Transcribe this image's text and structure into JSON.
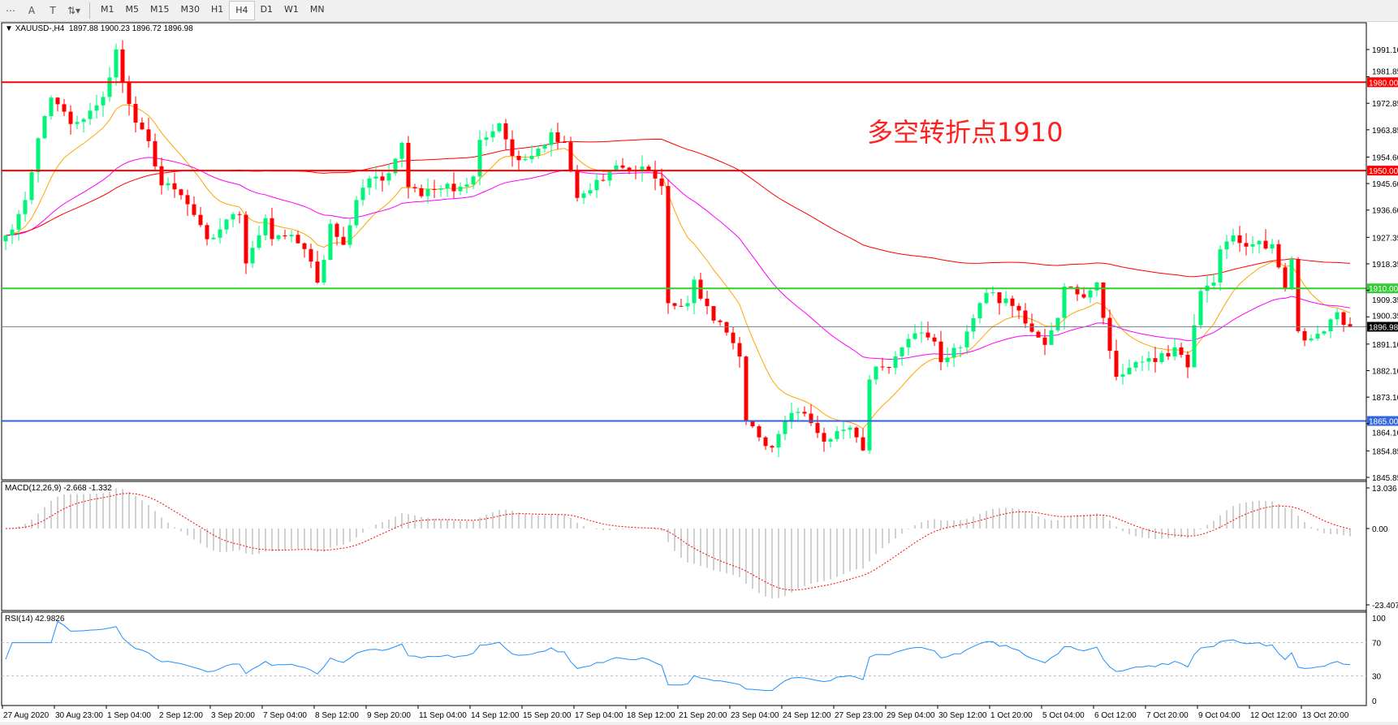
{
  "toolbar": {
    "icons": [
      "crosshair-icon",
      "text-A-icon",
      "text-T-icon",
      "arrows-icon"
    ],
    "timeframes": [
      "M1",
      "M5",
      "M15",
      "M30",
      "H1",
      "H4",
      "D1",
      "W1",
      "MN"
    ],
    "active_timeframe": "H4"
  },
  "header": {
    "symbol": "XAUUSD-,H4",
    "ohlc": "1897.88 1900.23 1896.72 1896.98"
  },
  "annotation": "多空转折点1910",
  "price_axis": [
    "1991.10",
    "1981.85",
    "1972.85",
    "1963.85",
    "1954.60",
    "1945.60",
    "1936.60",
    "1927.35",
    "1918.35",
    "1909.35",
    "1900.35",
    "1891.10",
    "1882.10",
    "1873.10",
    "1864.10",
    "1854.85",
    "1845.85"
  ],
  "levels": [
    {
      "price": 1980.0,
      "label": "1980.00",
      "color": "#ff0000"
    },
    {
      "price": 1950.0,
      "label": "1950.00",
      "color": "#ff0000"
    },
    {
      "price": 1910.0,
      "label": "1910.00",
      "color": "#33cc33"
    },
    {
      "price": 1865.0,
      "label": "1865.00",
      "color": "#3366dd"
    },
    {
      "price": 1896.98,
      "label": "1896.98",
      "color": "#000000",
      "line": "#778899"
    }
  ],
  "macd": {
    "label": "MACD(12,26,9) -2.668 -1.332",
    "axis": [
      "13.036",
      "0.00",
      "-23.407"
    ]
  },
  "rsi": {
    "label": "RSI(14) 42.9826",
    "axis": [
      "100",
      "70",
      "30",
      "0"
    ]
  },
  "time_axis": [
    "27 Aug 2020",
    "30 Aug 23:00",
    "1 Sep 04:00",
    "2 Sep 12:00",
    "3 Sep 20:00",
    "7 Sep 04:00",
    "8 Sep 12:00",
    "9 Sep 20:00",
    "11 Sep 04:00",
    "14 Sep 12:00",
    "15 Sep 20:00",
    "17 Sep 04:00",
    "18 Sep 12:00",
    "21 Sep 20:00",
    "23 Sep 04:00",
    "24 Sep 12:00",
    "27 Sep 23:00",
    "29 Sep 04:00",
    "30 Sep 12:00",
    "1 Oct 20:00",
    "5 Oct 04:00",
    "6 Oct 12:00",
    "7 Oct 20:00",
    "9 Oct 04:00",
    "12 Oct 12:00",
    "13 Oct 20:00"
  ],
  "colors": {
    "bull": "#00f57a",
    "bear": "#ff0000",
    "ma_fast": "#ffa500",
    "ma_mid": "#ff00ff",
    "ma_slow": "#ff0000",
    "rsi": "#1e90ff",
    "macd_hist": "#c0c0c0",
    "macd_signal": "#ff0000"
  },
  "chart_data": {
    "type": "candlestick",
    "symbol": "XAUUSD",
    "timeframe": "H4",
    "ylim": [
      1845.85,
      1996
    ],
    "last_bar": {
      "open": 1897.88,
      "high": 1900.23,
      "low": 1896.72,
      "close": 1896.98
    },
    "close_path": [
      [
        0,
        1928
      ],
      [
        1,
        1930
      ],
      [
        3,
        1940
      ],
      [
        5,
        1962
      ],
      [
        7,
        1975
      ],
      [
        11,
        1965
      ],
      [
        15,
        1975
      ],
      [
        17,
        1990
      ],
      [
        18,
        1980
      ],
      [
        19,
        1972
      ],
      [
        22,
        1960
      ],
      [
        24,
        1945
      ],
      [
        26,
        1945
      ],
      [
        29,
        1935
      ],
      [
        31,
        1928
      ],
      [
        33,
        1930
      ],
      [
        36,
        1935
      ],
      [
        37,
        1920
      ],
      [
        40,
        1932
      ],
      [
        41,
        1928
      ],
      [
        44,
        1928
      ],
      [
        47,
        1920
      ],
      [
        48,
        1912
      ],
      [
        50,
        1930
      ],
      [
        52,
        1925
      ],
      [
        54,
        1940
      ],
      [
        56,
        1948
      ],
      [
        59,
        1948
      ],
      [
        61,
        1960
      ],
      [
        62,
        1945
      ],
      [
        65,
        1942
      ],
      [
        67,
        1945
      ],
      [
        69,
        1943
      ],
      [
        72,
        1948
      ],
      [
        73,
        1960
      ],
      [
        76,
        1965
      ],
      [
        78,
        1955
      ],
      [
        81,
        1955
      ],
      [
        84,
        1963
      ],
      [
        86,
        1960
      ],
      [
        88,
        1940
      ],
      [
        91,
        1945
      ],
      [
        94,
        1952
      ],
      [
        96,
        1950
      ],
      [
        99,
        1950
      ],
      [
        101,
        1945
      ],
      [
        102,
        1905
      ],
      [
        105,
        1905
      ],
      [
        106,
        1912
      ],
      [
        109,
        1900
      ],
      [
        111,
        1895
      ],
      [
        113,
        1885
      ],
      [
        114,
        1865
      ],
      [
        116,
        1858
      ],
      [
        118,
        1855
      ],
      [
        120,
        1865
      ],
      [
        122,
        1870
      ],
      [
        124,
        1865
      ],
      [
        126,
        1858
      ],
      [
        128,
        1862
      ],
      [
        130,
        1862
      ],
      [
        132,
        1855
      ],
      [
        133,
        1880
      ],
      [
        136,
        1885
      ],
      [
        138,
        1890
      ],
      [
        140,
        1895
      ],
      [
        142,
        1895
      ],
      [
        144,
        1885
      ],
      [
        147,
        1890
      ],
      [
        149,
        1900
      ],
      [
        151,
        1910
      ],
      [
        153,
        1905
      ],
      [
        155,
        1905
      ],
      [
        157,
        1900
      ],
      [
        160,
        1890
      ],
      [
        162,
        1900
      ],
      [
        163,
        1910
      ],
      [
        165,
        1908
      ],
      [
        167,
        1908
      ],
      [
        168,
        1912
      ],
      [
        171,
        1880
      ],
      [
        173,
        1885
      ],
      [
        175,
        1885
      ],
      [
        177,
        1885
      ],
      [
        180,
        1890
      ],
      [
        182,
        1885
      ],
      [
        184,
        1910
      ],
      [
        186,
        1912
      ],
      [
        187,
        1925
      ],
      [
        189,
        1928
      ],
      [
        191,
        1925
      ],
      [
        194,
        1925
      ],
      [
        195,
        1925
      ],
      [
        197,
        1912
      ],
      [
        198,
        1920
      ],
      [
        199,
        1895
      ],
      [
        201,
        1893
      ],
      [
        203,
        1897
      ],
      [
        205,
        1902
      ],
      [
        206,
        1898
      ],
      [
        207,
        1897
      ]
    ],
    "horizontal_levels": [
      1980,
      1950,
      1910,
      1865
    ],
    "indicators": [
      "MA fast",
      "MA mid",
      "MA slow",
      "MACD(12,26,9)",
      "RSI(14)"
    ],
    "rsi_levels": [
      30,
      70
    ],
    "macd_range": [
      -23.407,
      13.036
    ]
  }
}
